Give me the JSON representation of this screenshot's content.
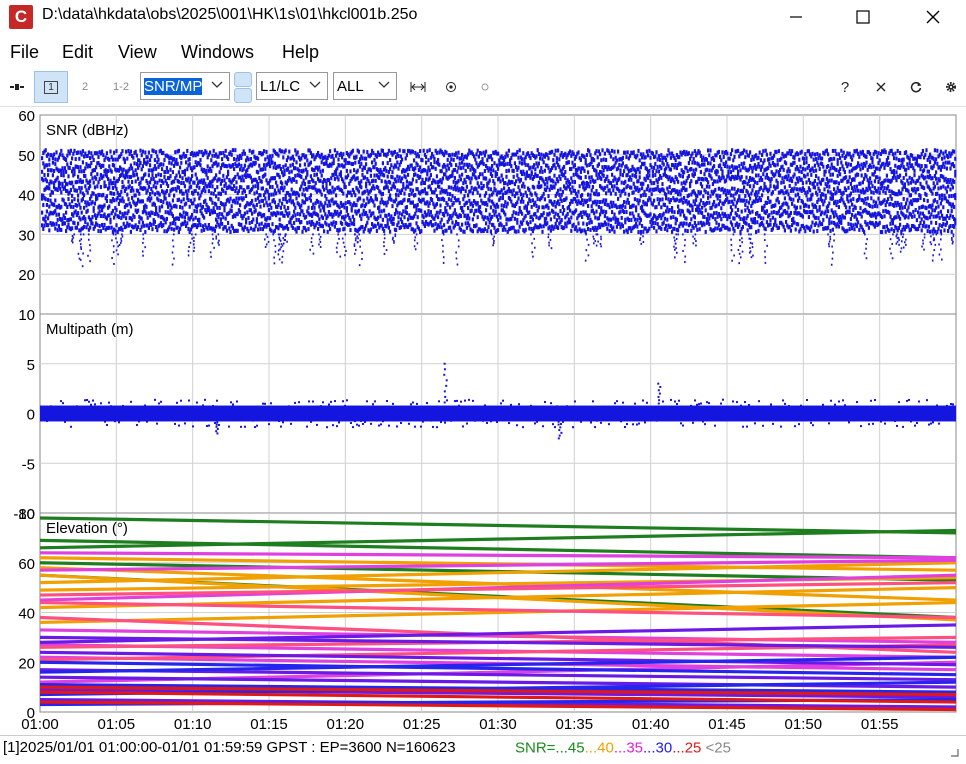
{
  "window": {
    "title": "D:\\data\\hkdata\\obs\\2025\\001\\HK\\1s\\01\\hkcl001b.25o",
    "app_icon_letter": "C"
  },
  "menu": [
    "File",
    "Edit",
    "View",
    "Windows",
    "Help"
  ],
  "toolbar": {
    "btn1": "1",
    "btn2": "2",
    "btn12": "1-2",
    "plot_type": "SNR/MP",
    "freq": "L1/LC",
    "sat": "ALL",
    "help": "?"
  },
  "chart_data": {
    "type": "scatter",
    "x_ticks": [
      "01:00",
      "01:05",
      "01:10",
      "01:15",
      "01:20",
      "01:25",
      "01:30",
      "01:35",
      "01:40",
      "01:45",
      "01:50",
      "01:55"
    ],
    "x_unit": "minutes since 01:00",
    "xlim": [
      0,
      60
    ],
    "grid": true,
    "panels": [
      {
        "title": "SNR (dBHz)",
        "ylim": [
          10,
          60
        ],
        "ticks": [
          "60",
          "50",
          "40",
          "30",
          "20",
          "10"
        ],
        "color": "#1515e0",
        "band": [
          30,
          51
        ],
        "main_levels": [
          32,
          35,
          38,
          41,
          44,
          47,
          50
        ]
      },
      {
        "title": "Multipath (m)",
        "ylim": [
          -10,
          10
        ],
        "ticks": [
          "5",
          "0",
          "-5",
          "-10"
        ],
        "color": "#1515e0",
        "band": [
          -0.8,
          0.8
        ]
      },
      {
        "title": "Elevation (°)",
        "ylim": [
          0,
          80
        ],
        "ticks": [
          "80",
          "60",
          "40",
          "20",
          "0"
        ],
        "series": [
          {
            "color": "#1e7d1e",
            "y": [
              78,
              72
            ]
          },
          {
            "color": "#1e7d1e",
            "y": [
              66,
              73
            ]
          },
          {
            "color": "#1e7d1e",
            "y": [
              69,
              62
            ]
          },
          {
            "color": "#1e7d1e",
            "y": [
              55,
              38
            ]
          },
          {
            "color": "#1e7d1e",
            "y": [
              60,
              53
            ]
          },
          {
            "color": "#f0a000",
            "y": [
              58,
              45
            ]
          },
          {
            "color": "#f0a000",
            "y": [
              52,
              60
            ]
          },
          {
            "color": "#f0a000",
            "y": [
              55,
              37
            ]
          },
          {
            "color": "#f0a000",
            "y": [
              42,
              50
            ]
          },
          {
            "color": "#f0a000",
            "y": [
              49,
              54
            ]
          },
          {
            "color": "#f0a000",
            "y": [
              62,
              57
            ]
          },
          {
            "color": "#f0a000",
            "y": [
              36,
              44
            ]
          },
          {
            "color": "#e040e0",
            "y": [
              64,
              62
            ]
          },
          {
            "color": "#e040e0",
            "y": [
              45,
              55
            ]
          },
          {
            "color": "#e040e0",
            "y": [
              33,
              28
            ]
          },
          {
            "color": "#e040e0",
            "y": [
              27,
              22
            ]
          },
          {
            "color": "#e040e0",
            "y": [
              22,
              17
            ]
          },
          {
            "color": "#e040e0",
            "y": [
              12,
              20
            ]
          },
          {
            "color": "#e040e0",
            "y": [
              57,
              61
            ]
          },
          {
            "color": "#ff5080",
            "y": [
              38,
              24
            ]
          },
          {
            "color": "#ff5080",
            "y": [
              26,
              30
            ]
          },
          {
            "color": "#ff5080",
            "y": [
              47,
              52
            ]
          },
          {
            "color": "#ff5080",
            "y": [
              44,
              38
            ]
          },
          {
            "color": "#ff5080",
            "y": [
              21,
              27
            ]
          },
          {
            "color": "#6a1ae6",
            "y": [
              30,
              26
            ]
          },
          {
            "color": "#6a1ae6",
            "y": [
              17,
              13
            ]
          },
          {
            "color": "#6a1ae6",
            "y": [
              14,
              10
            ]
          },
          {
            "color": "#6a1ae6",
            "y": [
              9,
              6
            ]
          },
          {
            "color": "#6a1ae6",
            "y": [
              5,
              2
            ]
          },
          {
            "color": "#6a1ae6",
            "y": [
              28,
              35
            ]
          },
          {
            "color": "#6a1ae6",
            "y": [
              24,
              19
            ]
          },
          {
            "color": "#2525ee",
            "y": [
              20,
              15
            ]
          },
          {
            "color": "#2525ee",
            "y": [
              11,
              8
            ]
          },
          {
            "color": "#2525ee",
            "y": [
              7,
              12
            ]
          },
          {
            "color": "#2525ee",
            "y": [
              3,
              5
            ]
          },
          {
            "color": "#2525ee",
            "y": [
              16,
              22
            ]
          },
          {
            "color": "#e01818",
            "y": [
              8,
              4
            ]
          },
          {
            "color": "#e01818",
            "y": [
              4,
              1
            ]
          },
          {
            "color": "#e01818",
            "y": [
              10,
              7
            ]
          }
        ]
      }
    ]
  },
  "status": {
    "text": "[1]2025/01/01 01:00:00-01/01 01:59:59 GPST : EP=3600 N=160623",
    "legend": [
      {
        "label": "SNR=...45",
        "color": "#1a8c1a"
      },
      {
        "label": "...40",
        "color": "#f0a000"
      },
      {
        "label": "...35",
        "color": "#e020e0"
      },
      {
        "label": "...30",
        "color": "#2020ee"
      },
      {
        "label": "...25",
        "color": "#e01818"
      },
      {
        "label": " <25",
        "color": "#888888"
      }
    ]
  }
}
